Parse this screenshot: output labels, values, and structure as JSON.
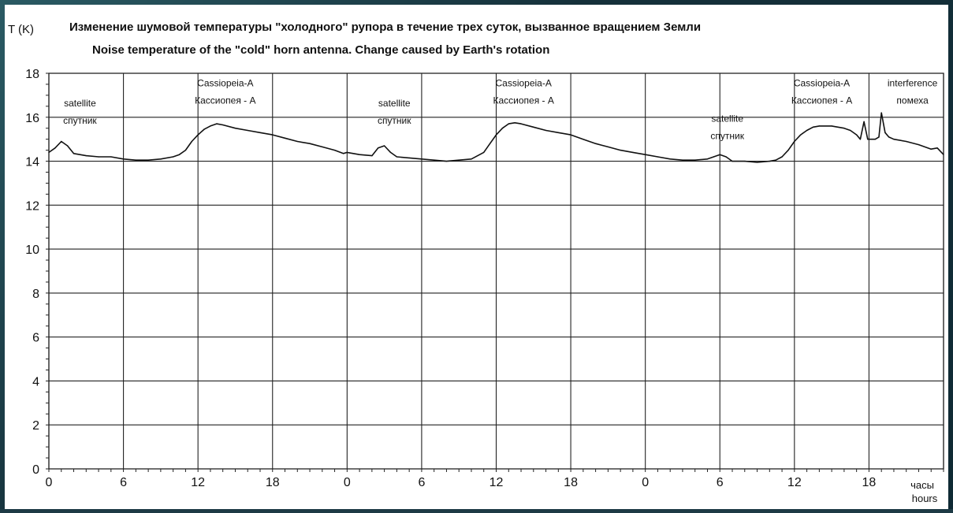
{
  "chart_data": {
    "type": "line",
    "title": "Изменение шумовой температуры \"холодного\" рупора в течение трех суток, вызванное вращением Земли",
    "subtitle": "Noise temperature of the \"cold\" horn antenna. Change caused by Earth's rotation",
    "ylabel": "T (K)",
    "xlabel_ru": "часы",
    "xlabel_en": "hours",
    "ylim": [
      0,
      18
    ],
    "xlim": [
      0,
      72
    ],
    "yticks": [
      0,
      2,
      4,
      6,
      8,
      10,
      12,
      14,
      16,
      18
    ],
    "x_tick_positions": [
      0,
      6,
      12,
      18,
      24,
      30,
      36,
      42,
      48,
      54,
      60,
      66,
      72
    ],
    "x_tick_labels": [
      "0",
      "6",
      "12",
      "18",
      "0",
      "6",
      "12",
      "18",
      "0",
      "6",
      "12",
      "18",
      ""
    ],
    "grid": true,
    "series": [
      {
        "x": [
          0,
          0.5,
          1.0,
          1.5,
          2.0,
          3,
          4,
          5,
          6,
          7,
          8,
          9,
          10,
          10.5,
          11,
          11.5,
          12,
          12.5,
          13,
          13.5,
          14,
          15,
          16,
          17,
          18,
          19,
          20,
          21,
          22,
          23,
          23.7,
          24,
          25,
          26,
          26.5,
          27,
          27.5,
          28,
          29,
          30,
          31,
          32,
          33,
          34,
          35,
          35.5,
          36,
          36.5,
          37,
          37.5,
          38,
          39,
          40,
          41,
          42,
          43,
          44,
          45,
          46,
          47,
          48,
          49,
          50,
          51,
          52,
          53,
          53.5,
          54,
          54.5,
          55,
          56,
          57,
          58,
          58.5,
          59,
          59.5,
          60,
          60.5,
          61,
          61.5,
          62,
          63,
          64,
          64.5,
          65,
          65.3,
          65.6,
          65.9,
          66.2,
          66.5,
          66.8,
          67.0,
          67.3,
          67.6,
          68,
          69,
          70,
          71,
          71.5,
          72
        ],
        "y": [
          14.4,
          14.6,
          14.9,
          14.7,
          14.35,
          14.25,
          14.2,
          14.2,
          14.1,
          14.05,
          14.05,
          14.1,
          14.2,
          14.3,
          14.5,
          14.9,
          15.2,
          15.45,
          15.6,
          15.7,
          15.65,
          15.5,
          15.4,
          15.3,
          15.2,
          15.05,
          14.9,
          14.8,
          14.65,
          14.5,
          14.35,
          14.4,
          14.3,
          14.25,
          14.6,
          14.7,
          14.4,
          14.2,
          14.15,
          14.1,
          14.05,
          14.0,
          14.05,
          14.1,
          14.4,
          14.8,
          15.2,
          15.5,
          15.7,
          15.75,
          15.7,
          15.55,
          15.4,
          15.3,
          15.2,
          15.0,
          14.8,
          14.65,
          14.5,
          14.4,
          14.3,
          14.2,
          14.1,
          14.05,
          14.05,
          14.1,
          14.2,
          14.3,
          14.2,
          14.0,
          14.0,
          13.95,
          14.0,
          14.05,
          14.2,
          14.5,
          14.9,
          15.2,
          15.4,
          15.55,
          15.6,
          15.6,
          15.5,
          15.4,
          15.2,
          15.0,
          15.8,
          15.0,
          15.0,
          15.0,
          15.1,
          16.2,
          15.3,
          15.1,
          15.0,
          14.9,
          14.75,
          14.55,
          14.6,
          14.3
        ]
      }
    ],
    "annotations": [
      {
        "lines": [
          "satellite",
          "спутник"
        ],
        "x": 2.5,
        "y": 16.5
      },
      {
        "lines": [
          "Cassiopeia-A",
          "Кассиопея - А"
        ],
        "x": 14.2,
        "y": 17.4
      },
      {
        "lines": [
          "satellite",
          "спутник"
        ],
        "x": 27.8,
        "y": 16.5
      },
      {
        "lines": [
          "Cassiopeia-A",
          "Кассиопея - А"
        ],
        "x": 38.2,
        "y": 17.4
      },
      {
        "lines": [
          "satellite",
          "спутник"
        ],
        "x": 54.6,
        "y": 15.8
      },
      {
        "lines": [
          "Cassiopeia-A",
          "Кассиопея - А"
        ],
        "x": 62.2,
        "y": 17.4
      },
      {
        "lines": [
          "interference",
          "помеха"
        ],
        "x": 69.5,
        "y": 17.4
      }
    ],
    "colors": {
      "line": "#111111",
      "grid": "#222222",
      "background": "#ffffff"
    }
  }
}
